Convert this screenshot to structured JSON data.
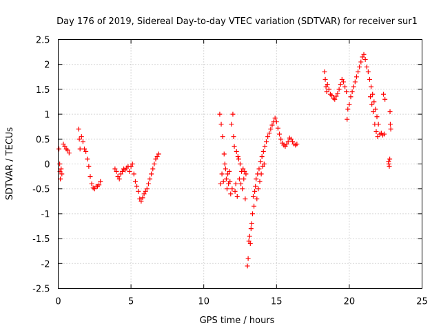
{
  "chart_data": {
    "type": "scatter",
    "title": "Day 176 of 2019, Sidereal Day-to-day VTEC variation (SDTVAR) for receiver sur1",
    "xlabel": "GPS time / hours",
    "ylabel": "SDTVAR / TECUs",
    "xlim": [
      0,
      25
    ],
    "ylim": [
      -2.5,
      2.5
    ],
    "xticks": [
      0,
      5,
      10,
      15,
      20,
      25
    ],
    "xtick_labels": [
      "0",
      "5",
      "10",
      "15",
      "20",
      "25"
    ],
    "yticks": [
      -2.5,
      -2,
      -1.5,
      -1,
      -0.5,
      0,
      0.5,
      1,
      1.5,
      2,
      2.5
    ],
    "ytick_labels": [
      "-2.5",
      "-2",
      "-1.5",
      "-1",
      "-0.5",
      "0",
      "0.5",
      "1",
      "1.5",
      "2",
      "2.5"
    ],
    "grid": true,
    "marker": "+",
    "color": "#ff0000",
    "series": [
      {
        "name": "SDTVAR",
        "points": [
          [
            0.05,
            0.3
          ],
          [
            0.1,
            0.0
          ],
          [
            0.12,
            -0.15
          ],
          [
            0.15,
            -0.3
          ],
          [
            0.2,
            -0.1
          ],
          [
            0.25,
            -0.2
          ],
          [
            0.35,
            0.4
          ],
          [
            0.45,
            0.35
          ],
          [
            0.55,
            0.3
          ],
          [
            0.65,
            0.28
          ],
          [
            0.75,
            0.22
          ],
          [
            1.4,
            0.7
          ],
          [
            1.45,
            0.5
          ],
          [
            1.5,
            0.3
          ],
          [
            1.6,
            0.55
          ],
          [
            1.7,
            0.45
          ],
          [
            1.8,
            0.3
          ],
          [
            1.9,
            0.25
          ],
          [
            2.0,
            0.1
          ],
          [
            2.1,
            -0.05
          ],
          [
            2.2,
            -0.25
          ],
          [
            2.3,
            -0.4
          ],
          [
            2.4,
            -0.48
          ],
          [
            2.5,
            -0.5
          ],
          [
            2.6,
            -0.45
          ],
          [
            2.7,
            -0.45
          ],
          [
            2.8,
            -0.42
          ],
          [
            2.9,
            -0.35
          ],
          [
            3.9,
            -0.1
          ],
          [
            4.0,
            -0.15
          ],
          [
            4.1,
            -0.25
          ],
          [
            4.2,
            -0.3
          ],
          [
            4.3,
            -0.2
          ],
          [
            4.4,
            -0.15
          ],
          [
            4.5,
            -0.1
          ],
          [
            4.6,
            -0.12
          ],
          [
            4.7,
            -0.08
          ],
          [
            4.8,
            -0.05
          ],
          [
            4.9,
            -0.15
          ],
          [
            5.0,
            -0.05
          ],
          [
            5.1,
            0.0
          ],
          [
            5.2,
            -0.2
          ],
          [
            5.3,
            -0.35
          ],
          [
            5.4,
            -0.45
          ],
          [
            5.5,
            -0.55
          ],
          [
            5.6,
            -0.7
          ],
          [
            5.7,
            -0.75
          ],
          [
            5.8,
            -0.68
          ],
          [
            5.9,
            -0.6
          ],
          [
            6.0,
            -0.55
          ],
          [
            6.1,
            -0.5
          ],
          [
            6.2,
            -0.4
          ],
          [
            6.3,
            -0.3
          ],
          [
            6.4,
            -0.2
          ],
          [
            6.5,
            -0.1
          ],
          [
            6.6,
            0.0
          ],
          [
            6.7,
            0.1
          ],
          [
            6.8,
            0.15
          ],
          [
            6.9,
            0.2
          ],
          [
            11.1,
            1.0
          ],
          [
            11.15,
            -0.4
          ],
          [
            11.2,
            0.8
          ],
          [
            11.25,
            -0.2
          ],
          [
            11.3,
            0.55
          ],
          [
            11.35,
            -0.35
          ],
          [
            11.4,
            0.2
          ],
          [
            11.45,
            0.0
          ],
          [
            11.5,
            -0.1
          ],
          [
            11.55,
            -0.3
          ],
          [
            11.6,
            -0.5
          ],
          [
            11.65,
            -0.2
          ],
          [
            11.7,
            -0.4
          ],
          [
            11.75,
            -0.15
          ],
          [
            11.8,
            -0.35
          ],
          [
            11.85,
            -0.6
          ],
          [
            11.9,
            0.8
          ],
          [
            11.95,
            -0.5
          ],
          [
            12.0,
            1.0
          ],
          [
            12.05,
            0.55
          ],
          [
            12.1,
            0.35
          ],
          [
            12.15,
            -0.55
          ],
          [
            12.2,
            -0.4
          ],
          [
            12.25,
            0.25
          ],
          [
            12.3,
            -0.65
          ],
          [
            12.35,
            0.15
          ],
          [
            12.4,
            0.1
          ],
          [
            12.45,
            -0.3
          ],
          [
            12.5,
            0.0
          ],
          [
            12.55,
            -0.4
          ],
          [
            12.6,
            -0.15
          ],
          [
            12.65,
            -0.5
          ],
          [
            12.7,
            -0.1
          ],
          [
            12.75,
            -0.3
          ],
          [
            12.8,
            -0.15
          ],
          [
            12.85,
            -0.7
          ],
          [
            12.9,
            -0.2
          ],
          [
            13.0,
            -2.05
          ],
          [
            13.05,
            -1.9
          ],
          [
            13.1,
            -1.55
          ],
          [
            13.15,
            -1.45
          ],
          [
            13.2,
            -1.6
          ],
          [
            13.25,
            -1.3
          ],
          [
            13.3,
            -1.2
          ],
          [
            13.35,
            -1.0
          ],
          [
            13.4,
            -0.65
          ],
          [
            13.45,
            -0.85
          ],
          [
            13.5,
            -0.55
          ],
          [
            13.55,
            -0.45
          ],
          [
            13.6,
            -0.3
          ],
          [
            13.65,
            -0.7
          ],
          [
            13.7,
            -0.2
          ],
          [
            13.75,
            -0.5
          ],
          [
            13.8,
            -0.1
          ],
          [
            13.85,
            -0.35
          ],
          [
            13.9,
            0.05
          ],
          [
            13.95,
            -0.2
          ],
          [
            14.0,
            0.15
          ],
          [
            14.05,
            -0.05
          ],
          [
            14.1,
            0.25
          ],
          [
            14.15,
            0.0
          ],
          [
            14.2,
            0.35
          ],
          [
            14.3,
            0.45
          ],
          [
            14.4,
            0.55
          ],
          [
            14.5,
            0.62
          ],
          [
            14.6,
            0.7
          ],
          [
            14.7,
            0.78
          ],
          [
            14.8,
            0.85
          ],
          [
            14.9,
            0.92
          ],
          [
            15.0,
            0.85
          ],
          [
            15.1,
            0.72
          ],
          [
            15.2,
            0.6
          ],
          [
            15.3,
            0.5
          ],
          [
            15.4,
            0.42
          ],
          [
            15.5,
            0.38
          ],
          [
            15.6,
            0.35
          ],
          [
            15.7,
            0.4
          ],
          [
            15.8,
            0.45
          ],
          [
            15.9,
            0.52
          ],
          [
            16.0,
            0.5
          ],
          [
            16.1,
            0.45
          ],
          [
            16.2,
            0.4
          ],
          [
            16.3,
            0.38
          ],
          [
            16.4,
            0.4
          ],
          [
            18.3,
            1.85
          ],
          [
            18.35,
            1.7
          ],
          [
            18.4,
            1.55
          ],
          [
            18.45,
            1.45
          ],
          [
            18.5,
            1.6
          ],
          [
            18.6,
            1.5
          ],
          [
            18.7,
            1.4
          ],
          [
            18.8,
            1.38
          ],
          [
            18.9,
            1.32
          ],
          [
            19.0,
            1.3
          ],
          [
            19.1,
            1.36
          ],
          [
            19.2,
            1.42
          ],
          [
            19.3,
            1.5
          ],
          [
            19.4,
            1.6
          ],
          [
            19.5,
            1.7
          ],
          [
            19.6,
            1.65
          ],
          [
            19.7,
            1.55
          ],
          [
            19.8,
            1.45
          ],
          [
            19.85,
            0.9
          ],
          [
            19.9,
            1.1
          ],
          [
            20.0,
            1.2
          ],
          [
            20.1,
            1.35
          ],
          [
            20.2,
            1.45
          ],
          [
            20.3,
            1.55
          ],
          [
            20.4,
            1.65
          ],
          [
            20.5,
            1.75
          ],
          [
            20.6,
            1.85
          ],
          [
            20.7,
            1.95
          ],
          [
            20.8,
            2.05
          ],
          [
            20.9,
            2.15
          ],
          [
            21.0,
            2.2
          ],
          [
            21.1,
            2.1
          ],
          [
            21.2,
            1.95
          ],
          [
            21.3,
            1.85
          ],
          [
            21.4,
            1.7
          ],
          [
            21.45,
            1.35
          ],
          [
            21.5,
            1.55
          ],
          [
            21.55,
            1.2
          ],
          [
            21.6,
            1.4
          ],
          [
            21.65,
            1.05
          ],
          [
            21.7,
            1.25
          ],
          [
            21.75,
            0.8
          ],
          [
            21.8,
            1.1
          ],
          [
            21.85,
            0.65
          ],
          [
            21.9,
            0.95
          ],
          [
            21.95,
            0.55
          ],
          [
            22.0,
            0.8
          ],
          [
            22.1,
            0.6
          ],
          [
            22.2,
            0.62
          ],
          [
            22.3,
            0.58
          ],
          [
            22.35,
            1.4
          ],
          [
            22.4,
            0.6
          ],
          [
            22.45,
            1.3
          ],
          [
            22.7,
            0.05
          ],
          [
            22.72,
            0.0
          ],
          [
            22.75,
            -0.05
          ],
          [
            22.78,
            0.1
          ],
          [
            22.8,
            1.05
          ],
          [
            22.82,
            0.8
          ],
          [
            22.85,
            0.7
          ]
        ]
      }
    ]
  }
}
